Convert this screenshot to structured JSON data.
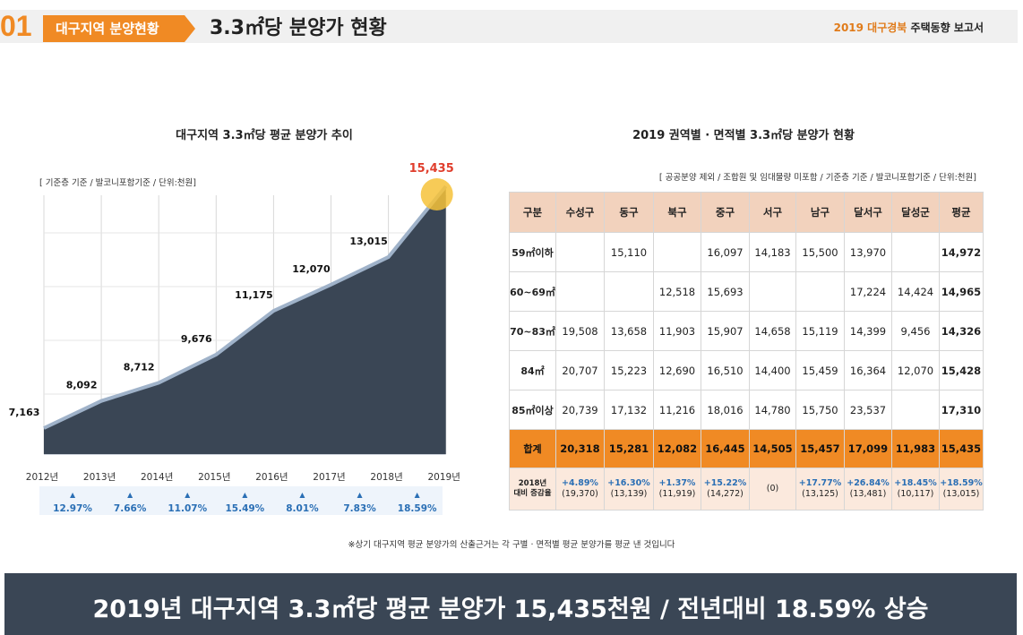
{
  "header": {
    "number": "01",
    "tag": "대구지역 분양현황",
    "title": "3.3㎡당 분양가 현황",
    "report_accent": "2019 대구경북",
    "report_rest": " 주택동향 보고서"
  },
  "chart_data": [
    {
      "type": "area",
      "title": "대구지역 3.3㎡당 평균 분양가 추이",
      "note": "[ 기준층 기준 / 발코니포함기준 / 단위:천원]",
      "categories": [
        "2012년",
        "2013년",
        "2014년",
        "2015년",
        "2016년",
        "2017년",
        "2018년",
        "2019년"
      ],
      "values": [
        7163,
        8092,
        8712,
        9676,
        11175,
        12070,
        13015,
        15435
      ],
      "value_labels": [
        "7,163",
        "8,092",
        "8,712",
        "9,676",
        "11,175",
        "12,070",
        "13,015",
        "15,435"
      ],
      "growth": [
        "12.97%",
        "7.66%",
        "11.07%",
        "15.49%",
        "8.01%",
        "7.83%",
        "18.59%"
      ],
      "highlight_index": 7,
      "colors": {
        "fill": "#3a4655",
        "stroke": "#9fb2c9",
        "highlight": "#e03e2d",
        "growth": "#2a6fb5",
        "marker": "#f6c23a"
      }
    },
    {
      "type": "table",
      "title": "2019 권역별 · 면적별 3.3㎡당 분양가 현황",
      "note": "[ 공공분양 제외 / 조합원 및 임대물량 미포함 / 기준층 기준 / 발코니포함기준 / 단위:천원]",
      "columns": [
        "구분",
        "수성구",
        "동구",
        "북구",
        "중구",
        "서구",
        "남구",
        "달서구",
        "달성군",
        "평균"
      ],
      "rows": [
        [
          "59㎡이하",
          "",
          "15,110",
          "",
          "16,097",
          "14,183",
          "15,500",
          "13,970",
          "",
          "14,972"
        ],
        [
          "60~69㎡",
          "",
          "",
          "12,518",
          "15,693",
          "",
          "",
          "17,224",
          "14,424",
          "14,965"
        ],
        [
          "70~83㎡",
          "19,508",
          "13,658",
          "11,903",
          "15,907",
          "14,658",
          "15,119",
          "14,399",
          "9,456",
          "14,326"
        ],
        [
          "84㎡",
          "20,707",
          "15,223",
          "12,690",
          "16,510",
          "14,400",
          "15,459",
          "16,364",
          "12,070",
          "15,428"
        ],
        [
          "85㎡이상",
          "20,739",
          "17,132",
          "11,216",
          "18,016",
          "14,780",
          "15,750",
          "23,537",
          "",
          "17,310"
        ]
      ],
      "total": [
        "합계",
        "20,318",
        "15,281",
        "12,082",
        "16,445",
        "14,505",
        "15,457",
        "17,099",
        "11,983",
        "15,435"
      ],
      "change_label": [
        "2018년",
        "대비 증감율"
      ],
      "change": [
        {
          "pct": "+4.89%",
          "prev": "(19,370)"
        },
        {
          "pct": "+16.30%",
          "prev": "(13,139)"
        },
        {
          "pct": "+1.37%",
          "prev": "(11,919)"
        },
        {
          "pct": "+15.22%",
          "prev": "(14,272)"
        },
        {
          "pct": "",
          "prev": "(0)"
        },
        {
          "pct": "+17.77%",
          "prev": "(13,125)"
        },
        {
          "pct": "+26.84%",
          "prev": "(13,481)"
        },
        {
          "pct": "+18.45%",
          "prev": "(10,117)"
        },
        {
          "pct": "+18.59%",
          "prev": "(13,015)"
        }
      ]
    }
  ],
  "footnote": "※상기 대구지역 평균 분양가의 산출근거는 각 구별 · 면적별 평균 분양가를 평균 낸 것입니다",
  "banner": "2019년 대구지역 3.3㎡당 평균 분양가 15,435천원 / 전년대비 18.59% 상승"
}
